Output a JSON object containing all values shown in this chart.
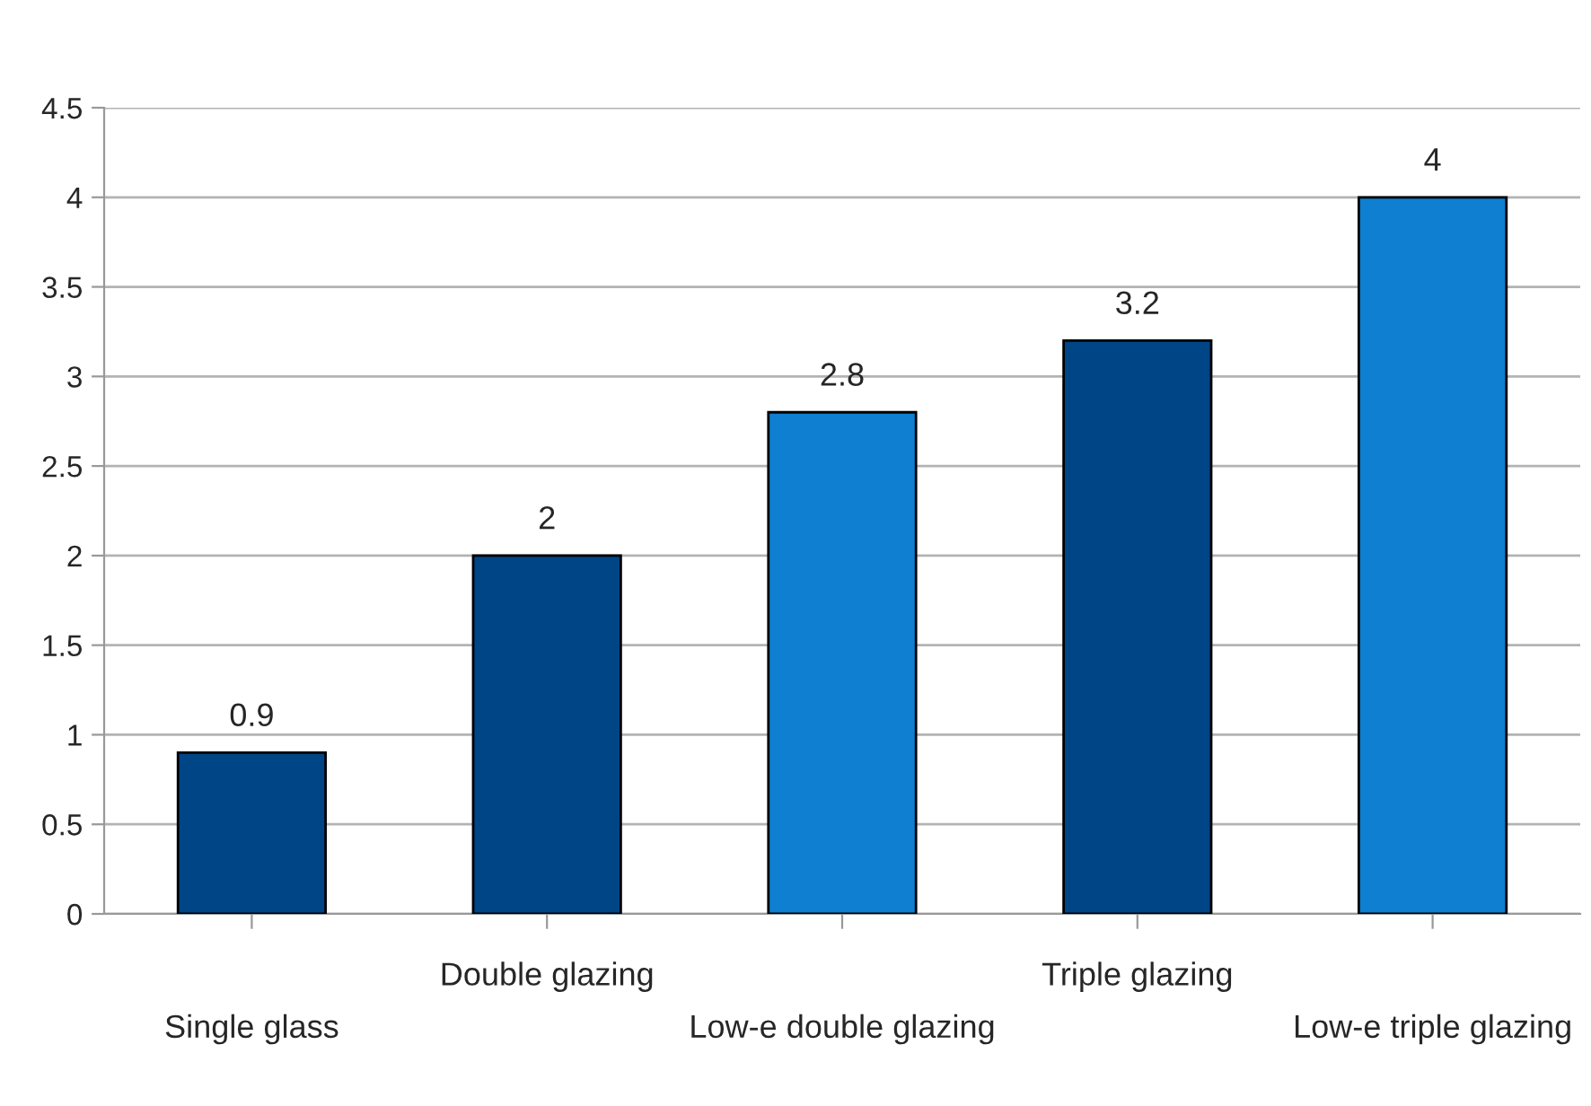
{
  "chart_data": {
    "type": "bar",
    "categories": [
      "Single glass",
      "Double glazing",
      "Low-e double glazing",
      "Triple glazing",
      "Low-e triple glazing"
    ],
    "values": [
      0.9,
      2,
      2.8,
      3.2,
      4
    ],
    "colors": [
      "#004586",
      "#004586",
      "#0e7fd1",
      "#004586",
      "#0e7fd1"
    ],
    "ylim": [
      0,
      4.5
    ],
    "yticks": [
      0,
      0.5,
      1,
      1.5,
      2,
      2.5,
      3,
      3.5,
      4,
      4.5
    ],
    "grid": "y",
    "data_labels": true
  }
}
